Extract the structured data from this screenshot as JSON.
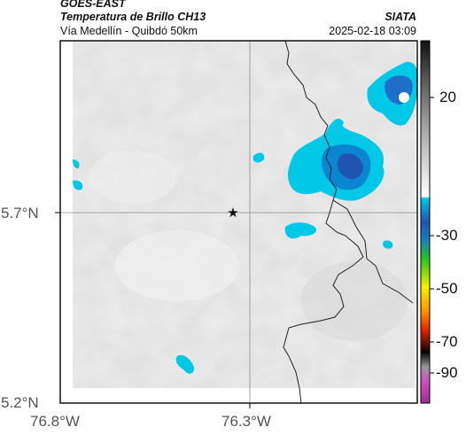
{
  "header": {
    "satellite": "GOES-EAST",
    "product": "Temperatura de Brillo CH13",
    "region": "Vía Medellín - Quibdó 50km",
    "agency": "SIATA",
    "timestamp": "2025-02-18 03:09"
  },
  "map": {
    "lon_ticks": [
      "76.8°W",
      "76.3°W"
    ],
    "lat_ticks": [
      "5.7°N",
      "5.2°N"
    ],
    "marker": "star-marker"
  },
  "colorbar": {
    "labels": [
      "20",
      "-30",
      "-50",
      "-70",
      "-90"
    ],
    "colors": {
      "cold_cyan": "#00c8e6",
      "deep_blue": "#1f55b0",
      "green": "#22c322",
      "yellow": "#f5f000",
      "red": "#e02000",
      "black": "#050505",
      "magenta": "#d050c0"
    }
  }
}
